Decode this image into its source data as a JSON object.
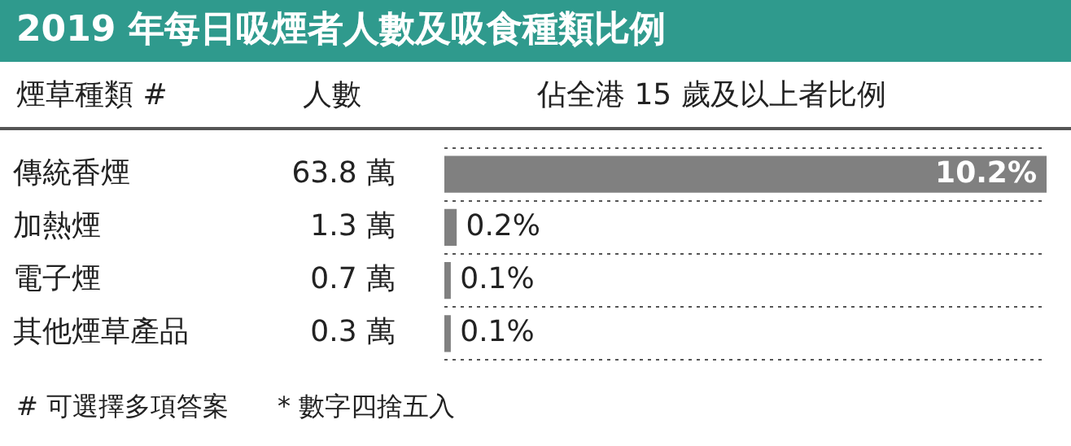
{
  "chart_data": {
    "type": "bar",
    "orientation": "horizontal",
    "title": "2019 年每日吸煙者人數及吸食種類比例",
    "ylabel": "煙草種類 #",
    "xlabel": "佔全港 15 歲及以上者比例",
    "categories": [
      "傳統香煙",
      "加熱煙",
      "電子煙",
      "其他煙草產品"
    ],
    "values": [
      10.2,
      0.2,
      0.1,
      0.1
    ],
    "value_labels": [
      "10.2%",
      "0.2%",
      "0.1%",
      "0.1%"
    ],
    "color": "#808080",
    "xlim": [
      0,
      10.2
    ],
    "tick_labels": "y",
    "grid": "y",
    "legend": false,
    "annotations": [
      "人數",
      "63.8 萬",
      "1.3 萬",
      "0.7 萬",
      "0.3 萬",
      "# 可選擇多項答案",
      "* 數字四捨五入"
    ]
  }
}
